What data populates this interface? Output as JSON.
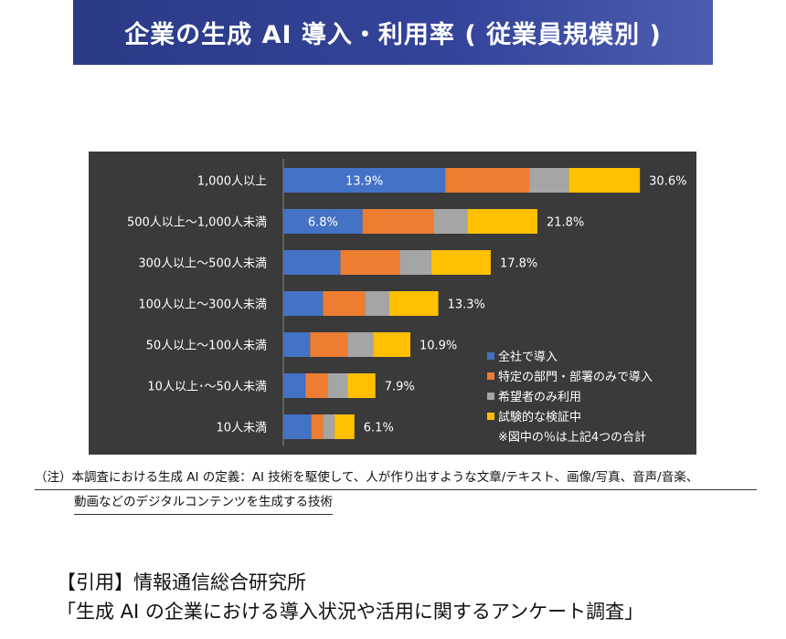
{
  "header": {
    "title": "企業の生成 AI 導入・利用率 ( 従業員規模別 )"
  },
  "chart_data": {
    "type": "bar",
    "orientation": "horizontal",
    "stacked": true,
    "title": "",
    "categories": [
      "1,000人以上",
      "500人以上〜1,000人未満",
      "300人以上〜500人未満",
      "100人以上〜300人未満",
      "50人以上〜100人未満",
      "10人以上･〜50人未満",
      "10人未満"
    ],
    "series": [
      {
        "name": "全社で導入",
        "color": "#4472c4",
        "values": [
          13.9,
          6.8,
          4.9,
          3.4,
          2.3,
          1.9,
          2.4
        ]
      },
      {
        "name": "特定の部門・部署のみで導入",
        "color": "#ed7d31",
        "values": [
          7.2,
          6.1,
          5.1,
          3.6,
          3.2,
          1.9,
          1.0
        ]
      },
      {
        "name": "希望者のみ利用",
        "color": "#a5a5a5",
        "values": [
          3.4,
          2.9,
          2.7,
          2.1,
          2.2,
          1.7,
          1.0
        ]
      },
      {
        "name": "試験的な検証中",
        "color": "#ffc000",
        "values": [
          6.1,
          6.0,
          5.1,
          4.2,
          3.2,
          2.4,
          1.7
        ]
      }
    ],
    "inbar_labels": [
      "13.9%",
      "6.8%",
      "",
      "",
      "",
      "",
      ""
    ],
    "total_labels": [
      "30.6%",
      "21.8%",
      "17.8%",
      "13.3%",
      "10.9%",
      "7.9%",
      "6.1%"
    ],
    "legend_note": "※図中の％は上記4つの合計",
    "legend_position": "bottom-right",
    "xlim": [
      0,
      40
    ],
    "grid": false
  },
  "note": {
    "line1": "（注）本調査における生成 AI の定義：AI 技術を駆使して、人が作り出すような文章/テキスト、画像/写真、音声/音楽、",
    "line2": "動画などのデジタルコンテンツを生成する技術"
  },
  "citation": {
    "line1": "【引用】情報通信総合研究所",
    "line2": "「生成 AI の企業における導入状況や活用に関するアンケート調査」"
  }
}
